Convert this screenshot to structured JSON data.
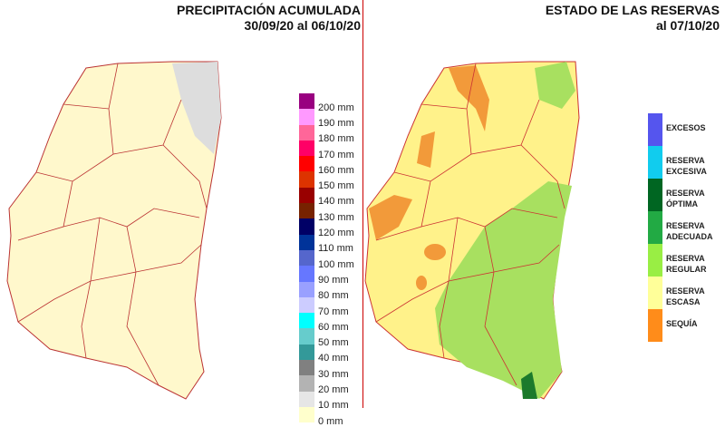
{
  "left_panel": {
    "title": "PRECIPITACIÓN ACUMULADA",
    "subtitle": "30/09/20 al 06/10/20",
    "legend": [
      {
        "label": "200 mm",
        "color": "#990080"
      },
      {
        "label": "190 mm",
        "color": "#ff99ff"
      },
      {
        "label": "180 mm",
        "color": "#ff6699"
      },
      {
        "label": "170 mm",
        "color": "#ff0066"
      },
      {
        "label": "160 mm",
        "color": "#ff0000"
      },
      {
        "label": "150 mm",
        "color": "#dd3300"
      },
      {
        "label": "140 mm",
        "color": "#990000"
      },
      {
        "label": "130 mm",
        "color": "#772200"
      },
      {
        "label": "120 mm",
        "color": "#000066"
      },
      {
        "label": "110 mm",
        "color": "#003399"
      },
      {
        "label": "100 mm",
        "color": "#5566cc"
      },
      {
        "label": "90 mm",
        "color": "#6677ff"
      },
      {
        "label": "80 mm",
        "color": "#99a0ff"
      },
      {
        "label": "70 mm",
        "color": "#ccccff"
      },
      {
        "label": "60 mm",
        "color": "#00ffff"
      },
      {
        "label": "50 mm",
        "color": "#66cccc"
      },
      {
        "label": "40 mm",
        "color": "#339999"
      },
      {
        "label": "30 mm",
        "color": "#808080"
      },
      {
        "label": "20 mm",
        "color": "#b3b3b3"
      },
      {
        "label": "10 mm",
        "color": "#e6e6e6"
      },
      {
        "label": "0 mm",
        "color": "#ffffcc"
      }
    ]
  },
  "right_panel": {
    "title": "ESTADO DE LAS RESERVAS",
    "subtitle": "al 07/10/20",
    "legend": [
      {
        "label": "EXCESOS",
        "color": "#5555ee"
      },
      {
        "label": "RESERVA EXCESIVA",
        "color": "#11ccee"
      },
      {
        "label": "RESERVA ÓPTIMA",
        "color": "#006622"
      },
      {
        "label": "RESERVA ADECUADA",
        "color": "#22aa44"
      },
      {
        "label": "RESERVA REGULAR",
        "color": "#99ee44"
      },
      {
        "label": "RESERVA ESCASA",
        "color": "#ffff99"
      },
      {
        "label": "SEQUÍA",
        "color": "#ff8c1a"
      }
    ]
  }
}
